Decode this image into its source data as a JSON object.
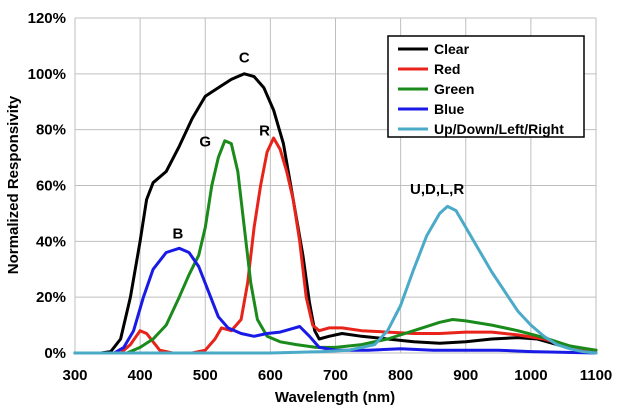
{
  "chart_data": {
    "type": "line",
    "title": "",
    "xlabel": "Wavelength (nm)",
    "ylabel": "Normalized Responsivity",
    "xlim": [
      300,
      1100
    ],
    "ylim": [
      0,
      120
    ],
    "x_ticks": [
      "300",
      "400",
      "500",
      "600",
      "700",
      "800",
      "900",
      "1000",
      "1100"
    ],
    "y_ticks": [
      "0%",
      "20%",
      "40%",
      "60%",
      "80%",
      "100%",
      "120%"
    ],
    "grid": true,
    "legend_position": "top-right",
    "series": [
      {
        "name": "Clear",
        "color": "#000000",
        "points": [
          [
            300,
            0
          ],
          [
            340,
            0
          ],
          [
            355,
            0.5
          ],
          [
            370,
            5
          ],
          [
            385,
            20
          ],
          [
            400,
            40
          ],
          [
            410,
            55
          ],
          [
            420,
            61
          ],
          [
            440,
            65
          ],
          [
            460,
            74
          ],
          [
            480,
            84
          ],
          [
            500,
            92
          ],
          [
            520,
            95
          ],
          [
            540,
            98
          ],
          [
            560,
            100
          ],
          [
            575,
            99
          ],
          [
            590,
            95
          ],
          [
            605,
            87
          ],
          [
            620,
            75
          ],
          [
            635,
            55
          ],
          [
            650,
            35
          ],
          [
            660,
            18
          ],
          [
            668,
            8
          ],
          [
            675,
            5
          ],
          [
            690,
            6
          ],
          [
            710,
            7
          ],
          [
            740,
            6
          ],
          [
            780,
            5
          ],
          [
            820,
            4
          ],
          [
            860,
            3.5
          ],
          [
            900,
            4
          ],
          [
            940,
            5
          ],
          [
            980,
            5.5
          ],
          [
            1010,
            5
          ],
          [
            1040,
            3
          ],
          [
            1070,
            1.5
          ],
          [
            1100,
            1
          ]
        ]
      },
      {
        "name": "Red",
        "color": "#e8231a",
        "points": [
          [
            300,
            0
          ],
          [
            370,
            0
          ],
          [
            385,
            3
          ],
          [
            400,
            8
          ],
          [
            410,
            7
          ],
          [
            420,
            4
          ],
          [
            430,
            1
          ],
          [
            450,
            0
          ],
          [
            480,
            0
          ],
          [
            500,
            1
          ],
          [
            515,
            5
          ],
          [
            525,
            9
          ],
          [
            540,
            8
          ],
          [
            555,
            12
          ],
          [
            565,
            25
          ],
          [
            575,
            45
          ],
          [
            585,
            60
          ],
          [
            595,
            72
          ],
          [
            605,
            77
          ],
          [
            615,
            73
          ],
          [
            625,
            65
          ],
          [
            635,
            55
          ],
          [
            645,
            40
          ],
          [
            655,
            20
          ],
          [
            665,
            10
          ],
          [
            675,
            8
          ],
          [
            690,
            9
          ],
          [
            710,
            9
          ],
          [
            740,
            8
          ],
          [
            780,
            7.5
          ],
          [
            820,
            7
          ],
          [
            860,
            7
          ],
          [
            900,
            7.5
          ],
          [
            940,
            7.5
          ],
          [
            980,
            6.5
          ],
          [
            1020,
            5
          ],
          [
            1050,
            3
          ],
          [
            1080,
            1.5
          ],
          [
            1100,
            1
          ]
        ]
      },
      {
        "name": "Green",
        "color": "#1a8a1a",
        "points": [
          [
            300,
            0
          ],
          [
            380,
            0
          ],
          [
            400,
            2
          ],
          [
            420,
            5
          ],
          [
            440,
            10
          ],
          [
            460,
            20
          ],
          [
            475,
            28
          ],
          [
            490,
            35
          ],
          [
            500,
            45
          ],
          [
            510,
            60
          ],
          [
            520,
            70
          ],
          [
            530,
            76
          ],
          [
            540,
            75
          ],
          [
            550,
            65
          ],
          [
            560,
            45
          ],
          [
            570,
            25
          ],
          [
            580,
            12
          ],
          [
            595,
            6
          ],
          [
            615,
            4
          ],
          [
            640,
            3
          ],
          [
            670,
            2
          ],
          [
            700,
            2
          ],
          [
            740,
            3
          ],
          [
            780,
            5
          ],
          [
            820,
            8
          ],
          [
            860,
            11
          ],
          [
            880,
            12
          ],
          [
            900,
            11.5
          ],
          [
            940,
            10
          ],
          [
            980,
            8
          ],
          [
            1020,
            5.5
          ],
          [
            1060,
            2.5
          ],
          [
            1100,
            1
          ]
        ]
      },
      {
        "name": "Blue",
        "color": "#1a1ae6",
        "points": [
          [
            300,
            0
          ],
          [
            360,
            0
          ],
          [
            375,
            2
          ],
          [
            390,
            8
          ],
          [
            405,
            20
          ],
          [
            420,
            30
          ],
          [
            440,
            36
          ],
          [
            460,
            37.5
          ],
          [
            475,
            36
          ],
          [
            490,
            31
          ],
          [
            505,
            22
          ],
          [
            520,
            13
          ],
          [
            535,
            9
          ],
          [
            555,
            7
          ],
          [
            575,
            6
          ],
          [
            595,
            7
          ],
          [
            615,
            7.5
          ],
          [
            630,
            8.5
          ],
          [
            645,
            9.5
          ],
          [
            660,
            6
          ],
          [
            675,
            2
          ],
          [
            700,
            1
          ],
          [
            750,
            1
          ],
          [
            800,
            1.5
          ],
          [
            850,
            1
          ],
          [
            900,
            1
          ],
          [
            950,
            1
          ],
          [
            1000,
            0.5
          ],
          [
            1100,
            0
          ]
        ]
      },
      {
        "name": "Up/Down/Left/Right",
        "color": "#4aaac8",
        "points": [
          [
            300,
            0
          ],
          [
            600,
            0
          ],
          [
            680,
            0.5
          ],
          [
            720,
            1
          ],
          [
            760,
            3
          ],
          [
            780,
            8
          ],
          [
            800,
            17
          ],
          [
            820,
            30
          ],
          [
            840,
            42
          ],
          [
            860,
            50
          ],
          [
            872,
            52.5
          ],
          [
            885,
            51
          ],
          [
            900,
            45
          ],
          [
            920,
            37
          ],
          [
            940,
            29
          ],
          [
            960,
            22
          ],
          [
            980,
            15
          ],
          [
            1000,
            10
          ],
          [
            1020,
            6
          ],
          [
            1040,
            3
          ],
          [
            1060,
            1.5
          ],
          [
            1080,
            0.5
          ],
          [
            1100,
            0
          ]
        ]
      }
    ],
    "annotations": [
      {
        "text": "C",
        "x": 560,
        "y": 104
      },
      {
        "text": "R",
        "x": 591,
        "y": 78
      },
      {
        "text": "G",
        "x": 500,
        "y": 74
      },
      {
        "text": "B",
        "x": 458,
        "y": 41
      },
      {
        "text": "U,D,L,R",
        "x": 856,
        "y": 57
      }
    ]
  }
}
